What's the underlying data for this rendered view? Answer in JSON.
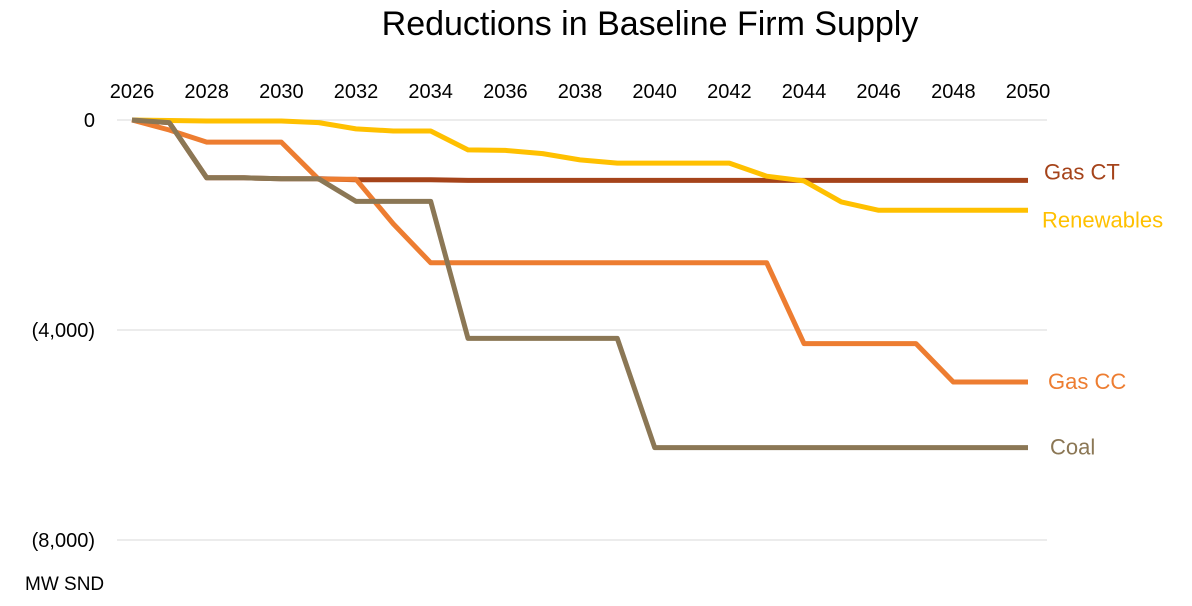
{
  "chart_data": {
    "type": "line",
    "title": "Reductions in Baseline Firm Supply",
    "ylabel": "MW SND",
    "x": [
      2026,
      2027,
      2028,
      2029,
      2030,
      2031,
      2032,
      2033,
      2034,
      2035,
      2036,
      2037,
      2038,
      2039,
      2040,
      2041,
      2042,
      2043,
      2044,
      2045,
      2046,
      2047,
      2048,
      2049,
      2050
    ],
    "x_tick_labels": [
      "2026",
      "2028",
      "2030",
      "2032",
      "2034",
      "2036",
      "2038",
      "2040",
      "2042",
      "2044",
      "2046",
      "2048",
      "2050"
    ],
    "x_ticks": [
      2026,
      2028,
      2030,
      2032,
      2034,
      2036,
      2038,
      2040,
      2042,
      2044,
      2046,
      2048,
      2050
    ],
    "y_tick_labels": [
      "0",
      "(4,000)",
      "(8,000)"
    ],
    "y_ticks": [
      0,
      -4000,
      -8000
    ],
    "ylim": [
      -8000,
      0
    ],
    "xlim": [
      2026,
      2050
    ],
    "grid": true,
    "x_axis_position": "top",
    "series": [
      {
        "name": "Gas CT",
        "color": "#a5431a",
        "values": [
          0,
          -50,
          -1100,
          -1100,
          -1120,
          -1120,
          -1140,
          -1140,
          -1140,
          -1150,
          -1150,
          -1150,
          -1150,
          -1150,
          -1150,
          -1150,
          -1150,
          -1150,
          -1150,
          -1150,
          -1150,
          -1150,
          -1150,
          -1150,
          -1150
        ]
      },
      {
        "name": "Renewables",
        "color": "#ffc000",
        "values": [
          0,
          -10,
          -20,
          -20,
          -20,
          -50,
          -170,
          -210,
          -210,
          -570,
          -580,
          -640,
          -760,
          -820,
          -820,
          -820,
          -820,
          -1070,
          -1160,
          -1560,
          -1720,
          -1720,
          -1720,
          -1720,
          -1720
        ]
      },
      {
        "name": "Gas CC",
        "color": "#ed7d31",
        "values": [
          0,
          -190,
          -420,
          -420,
          -420,
          -1130,
          -1130,
          -1980,
          -2720,
          -2720,
          -2720,
          -2720,
          -2720,
          -2720,
          -2720,
          -2720,
          -2720,
          -2720,
          -4260,
          -4260,
          -4260,
          -4260,
          -4990,
          -4990,
          -4990
        ]
      },
      {
        "name": "Coal",
        "color": "#8b7755",
        "values": [
          0,
          -50,
          -1100,
          -1100,
          -1120,
          -1120,
          -1550,
          -1550,
          -1550,
          -4160,
          -4160,
          -4160,
          -4160,
          -4160,
          -6240,
          -6240,
          -6240,
          -6240,
          -6240,
          -6240,
          -6240,
          -6240,
          -6240,
          -6240,
          -6240
        ]
      }
    ]
  }
}
